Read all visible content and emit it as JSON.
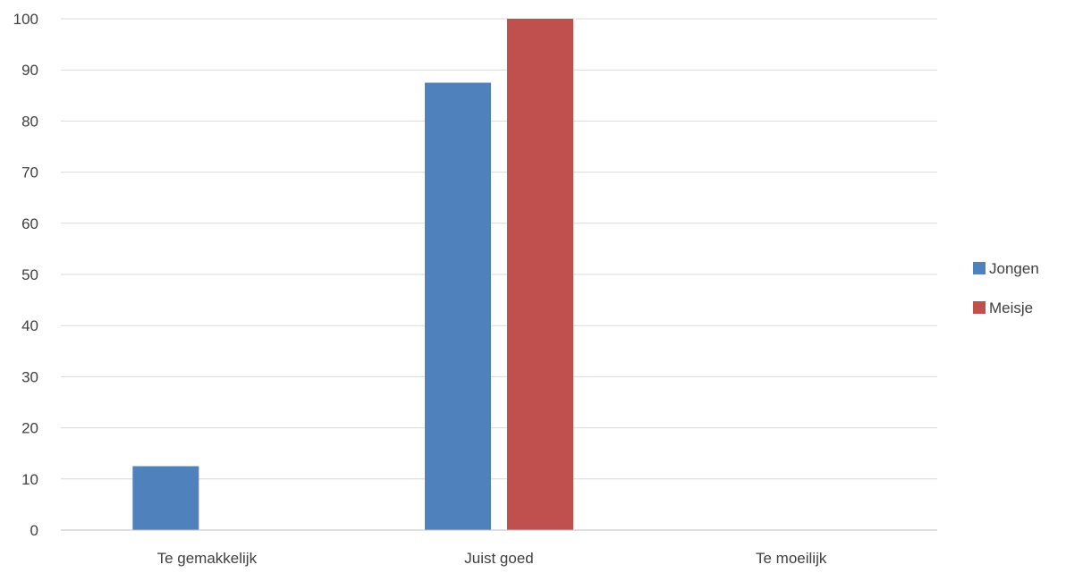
{
  "chart_data": {
    "type": "bar",
    "categories": [
      "Te gemakkelijk",
      "Juist goed",
      "Te moeilijk"
    ],
    "series": [
      {
        "name": "Jongen",
        "values": [
          12.5,
          87.5,
          0
        ],
        "color": "#4F81BD"
      },
      {
        "name": "Meisje",
        "values": [
          0,
          100,
          0
        ],
        "color": "#C0504D"
      }
    ],
    "ylim": [
      0,
      100
    ],
    "yticks": [
      0,
      10,
      20,
      30,
      40,
      50,
      60,
      70,
      80,
      90,
      100
    ],
    "grid": true,
    "legend_position": "right",
    "title": "",
    "xlabel": "",
    "ylabel": ""
  }
}
